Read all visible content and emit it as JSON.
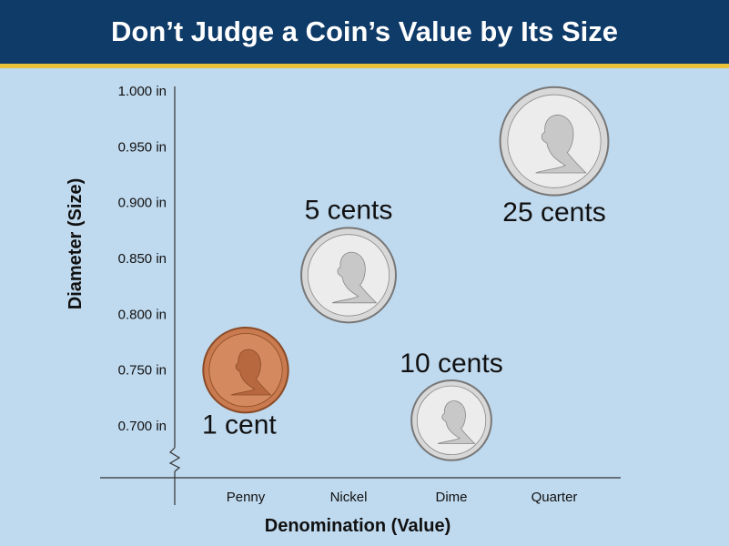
{
  "title": "Don’t Judge a Coin’s Value by Its Size",
  "colors": {
    "title_bg": "#0f3b68",
    "title_underline": "#e8c33a",
    "plot_bg": "#bfd9ee",
    "copper": "#c97a4f",
    "silver": "#d8d8d8"
  },
  "chart_data": {
    "type": "scatter",
    "xlabel": "Denomination (Value)",
    "ylabel": "Diameter (Size)",
    "categories": [
      "Penny",
      "Nickel",
      "Dime",
      "Quarter"
    ],
    "ylim": [
      0.66,
      1.0
    ],
    "y_ticks": [
      1.0,
      0.95,
      0.9,
      0.85,
      0.8,
      0.75,
      0.7
    ],
    "y_tick_labels": [
      "1.000 in",
      "0.950 in",
      "0.900 in",
      "0.850 in",
      "0.800 in",
      "0.750 in",
      "0.700 in"
    ],
    "axis_break": true,
    "grid": false,
    "points": [
      {
        "category": "Penny",
        "diameter_in": 0.75,
        "label": "1 cent",
        "metal": "copper",
        "icon": "lincoln-portrait-icon"
      },
      {
        "category": "Nickel",
        "diameter_in": 0.835,
        "label": "5 cents",
        "metal": "silver",
        "icon": "jefferson-portrait-icon"
      },
      {
        "category": "Dime",
        "diameter_in": 0.705,
        "label": "10 cents",
        "metal": "silver",
        "icon": "roosevelt-portrait-icon"
      },
      {
        "category": "Quarter",
        "diameter_in": 0.955,
        "label": "25 cents",
        "metal": "silver",
        "icon": "washington-portrait-icon"
      }
    ]
  }
}
